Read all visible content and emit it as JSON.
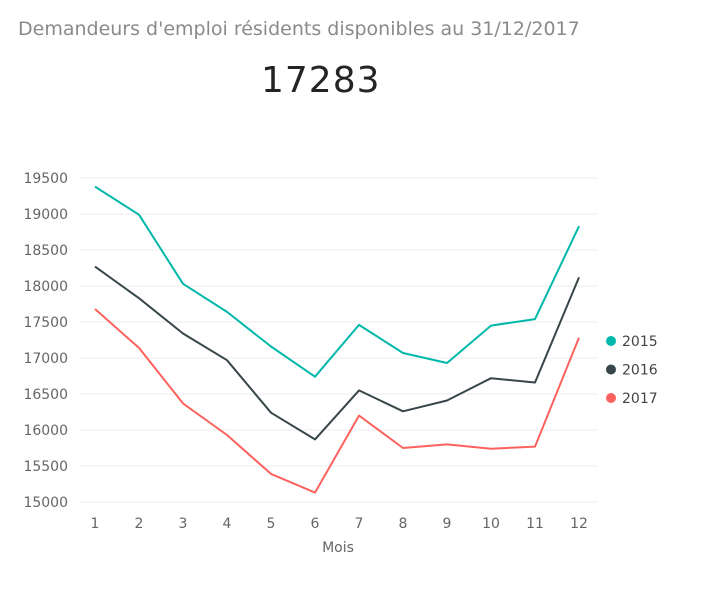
{
  "header": {
    "title": "Demandeurs d'emploi résidents disponibles au 31/12/2017",
    "kpi_value": "17283"
  },
  "chart_data": {
    "type": "line",
    "title": "",
    "xlabel": "Mois",
    "ylabel": "",
    "x": [
      1,
      2,
      3,
      4,
      5,
      6,
      7,
      8,
      9,
      10,
      11,
      12
    ],
    "ylim": [
      15000,
      19500
    ],
    "yticks": [
      15000,
      15500,
      16000,
      16500,
      17000,
      17500,
      18000,
      18500,
      19000,
      19500
    ],
    "grid": true,
    "legend_position": "right",
    "series": [
      {
        "name": "2015",
        "color": "#01b8aa",
        "values": [
          19380,
          18990,
          18030,
          17640,
          17160,
          16740,
          17460,
          17070,
          16930,
          17450,
          17540,
          18830
        ]
      },
      {
        "name": "2016",
        "color": "#374649",
        "values": [
          18270,
          17830,
          17340,
          16970,
          16240,
          15870,
          16550,
          16260,
          16410,
          16720,
          16660,
          18120
        ]
      },
      {
        "name": "2017",
        "color": "#fd625e",
        "values": [
          17680,
          17140,
          16370,
          15930,
          15390,
          15130,
          16200,
          15750,
          15800,
          15740,
          15770,
          17283
        ]
      }
    ]
  }
}
